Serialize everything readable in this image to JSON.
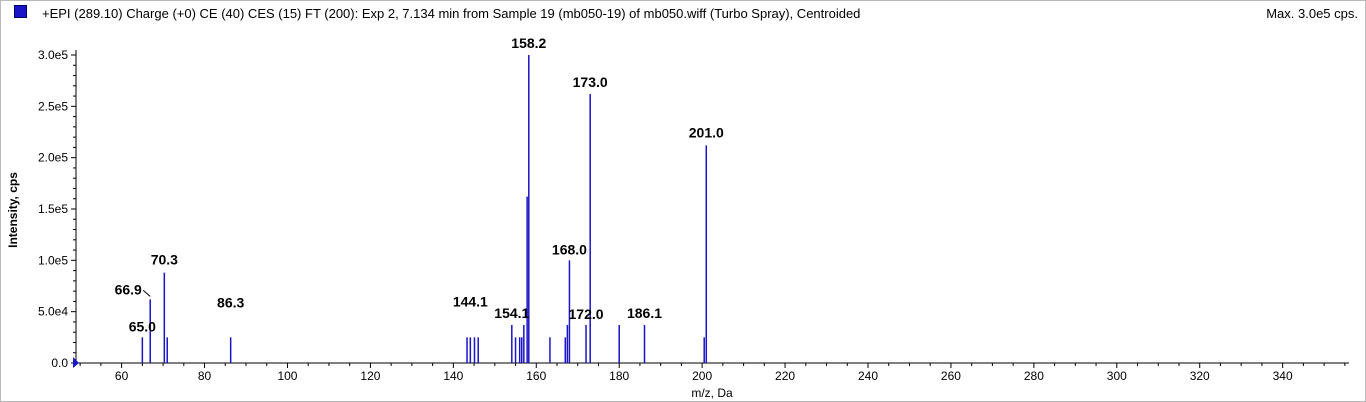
{
  "header": {
    "title": "+EPI (289.10) Charge (+0) CE (40) CES (15) FT (200): Exp 2, 7.134 min from Sample 19 (mb050-19) of mb050.wiff (Turbo Spray), Centroided",
    "max_label": "Max. 3.0e5 cps."
  },
  "colors": {
    "series": "#1a14c8",
    "axis": "#000000",
    "marker": "#1a14c8"
  },
  "chart_data": {
    "type": "bar",
    "xlabel": "m/z, Da",
    "ylabel": "Intensity, cps",
    "xlim": [
      49,
      356
    ],
    "ylim": [
      0,
      300000
    ],
    "grid": false,
    "x_ticks": [
      60,
      80,
      100,
      120,
      140,
      160,
      180,
      200,
      220,
      240,
      260,
      280,
      300,
      320,
      340
    ],
    "x_tick_labels": [
      "60",
      "80",
      "100",
      "120",
      "140",
      "160",
      "180",
      "200",
      "220",
      "240",
      "260",
      "280",
      "300",
      "320",
      "340"
    ],
    "y_ticks": [
      0,
      50000,
      100000,
      150000,
      200000,
      250000,
      300000
    ],
    "y_tick_labels": [
      "0.0",
      "5.0e4",
      "1.0e5",
      "1.5e5",
      "2.0e5",
      "2.5e5",
      "3.0e5"
    ],
    "series": [
      {
        "x": [
          65.0,
          66.9,
          70.3,
          71.0,
          86.3,
          143.3,
          144.1,
          145.1,
          146.0,
          154.1,
          155.0,
          156.0,
          156.5,
          157.0,
          157.8,
          158.2,
          163.3,
          167.0,
          167.5,
          168.0,
          172.0,
          173.0,
          180.0,
          186.1,
          200.5,
          201.0
        ],
        "y": [
          25000,
          62000,
          88000,
          25000,
          25000,
          25000,
          25000,
          25000,
          25000,
          37000,
          25000,
          25000,
          25000,
          37000,
          162000,
          300000,
          25000,
          25000,
          37000,
          100000,
          37000,
          262000,
          37000,
          37000,
          25000,
          212000
        ]
      }
    ],
    "annotations": [
      {
        "text": "65.0",
        "x": 65.0,
        "y": 25000
      },
      {
        "text": "66.9",
        "x": 66.9,
        "y": 62000
      },
      {
        "text": "70.3",
        "x": 70.3,
        "y": 88000
      },
      {
        "text": "86.3",
        "x": 86.3,
        "y": 25000
      },
      {
        "text": "144.1",
        "x": 144.1,
        "y": 25000
      },
      {
        "text": "154.1",
        "x": 154.1,
        "y": 37000
      },
      {
        "text": "158.2",
        "x": 158.2,
        "y": 300000
      },
      {
        "text": "168.0",
        "x": 168.0,
        "y": 100000
      },
      {
        "text": "172.0",
        "x": 172.0,
        "y": 37000
      },
      {
        "text": "173.0",
        "x": 173.0,
        "y": 262000
      },
      {
        "text": "186.1",
        "x": 186.1,
        "y": 37000
      },
      {
        "text": "201.0",
        "x": 201.0,
        "y": 212000
      }
    ]
  }
}
